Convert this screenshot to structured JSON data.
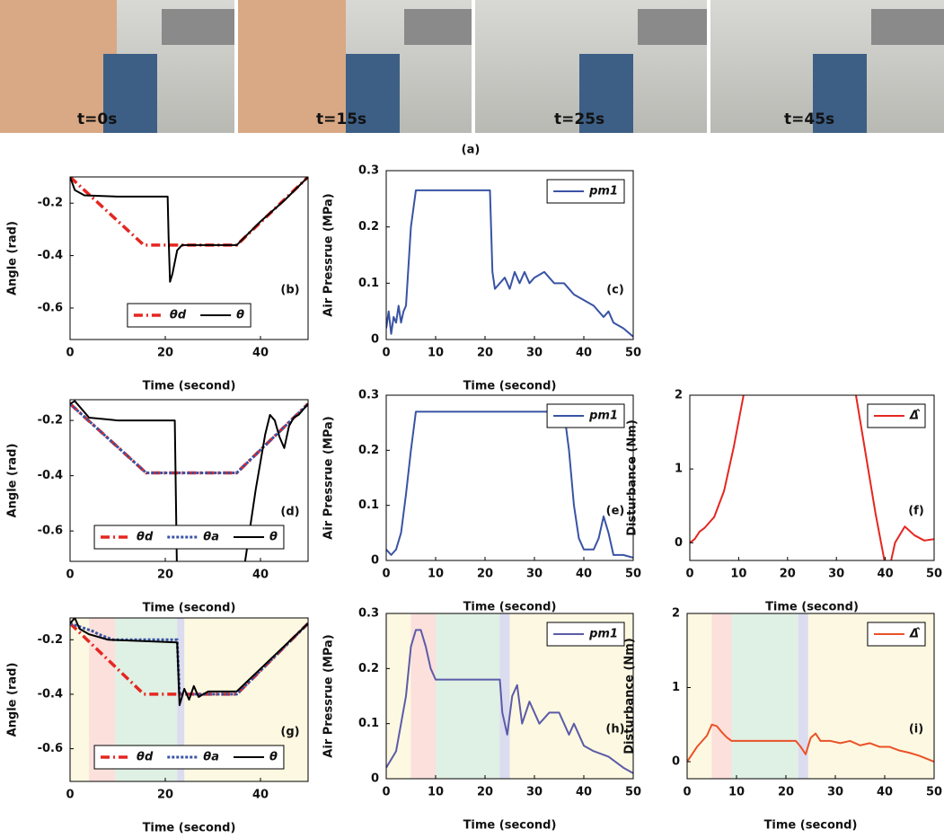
{
  "figure": {
    "photos": [
      {
        "label": "t=0s"
      },
      {
        "label": "t=15s"
      },
      {
        "label": "t=25s"
      },
      {
        "label": "t=45s"
      }
    ],
    "caption": "(a)"
  },
  "chart_data": [
    {
      "type": "line",
      "label": "(b)",
      "xlabel": "Time (second)",
      "ylabel": "Angle (rad)",
      "xlim": [
        0,
        50
      ],
      "ylim": [
        -0.72,
        -0.1
      ],
      "xticks": [
        0,
        20,
        40
      ],
      "yticks": [
        -0.6,
        -0.4,
        -0.2
      ],
      "legend": "lower center",
      "series": [
        {
          "name": "θd",
          "color": "#e52620",
          "style": "dashdot",
          "x": [
            0,
            15.5,
            35,
            50
          ],
          "values": [
            -0.1,
            -0.36,
            -0.36,
            -0.1
          ]
        },
        {
          "name": "θ",
          "color": "#000000",
          "style": "solid",
          "x": [
            0,
            1,
            3,
            10,
            20.5,
            20.7,
            21,
            21.5,
            22.5,
            23.5,
            30,
            35,
            40,
            45,
            50
          ],
          "values": [
            -0.1,
            -0.15,
            -0.17,
            -0.175,
            -0.175,
            -0.33,
            -0.5,
            -0.47,
            -0.38,
            -0.36,
            -0.36,
            -0.36,
            -0.27,
            -0.19,
            -0.1
          ]
        }
      ]
    },
    {
      "type": "line",
      "label": "(c)",
      "xlabel": "Time (second)",
      "ylabel": "Air Pressrue (MPa)",
      "xlim": [
        0,
        50
      ],
      "ylim": [
        0,
        0.3
      ],
      "xticks": [
        0,
        10,
        20,
        30,
        40,
        50
      ],
      "yticks": [
        0,
        0.1,
        0.2,
        0.3
      ],
      "legend": "upper right",
      "series": [
        {
          "name": "pm1",
          "color": "#3953a4",
          "style": "solid",
          "x": [
            0,
            0.5,
            1,
            1.5,
            2,
            2.5,
            3,
            3.5,
            4,
            5,
            6,
            10,
            15,
            20,
            21,
            21.5,
            22,
            23,
            24,
            25,
            26,
            27,
            28,
            29,
            30,
            32,
            34,
            36,
            38,
            40,
            42,
            44,
            45,
            46,
            48,
            50
          ],
          "values": [
            0.02,
            0.05,
            0.01,
            0.04,
            0.03,
            0.06,
            0.03,
            0.05,
            0.06,
            0.2,
            0.265,
            0.265,
            0.265,
            0.265,
            0.265,
            0.12,
            0.09,
            0.1,
            0.11,
            0.09,
            0.12,
            0.1,
            0.12,
            0.1,
            0.11,
            0.12,
            0.1,
            0.1,
            0.08,
            0.07,
            0.06,
            0.04,
            0.05,
            0.03,
            0.02,
            0.005
          ]
        }
      ]
    },
    {
      "type": "line",
      "label": "(d)",
      "xlabel": "Time (second)",
      "ylabel": "Angle (rad)",
      "xlim": [
        0,
        50
      ],
      "ylim": [
        -0.71,
        -0.125
      ],
      "xticks": [
        0,
        20,
        40
      ],
      "yticks": [
        -0.6,
        -0.4,
        -0.2
      ],
      "legend": "lower center",
      "series": [
        {
          "name": "θd",
          "color": "#e52620",
          "style": "dashdot",
          "x": [
            0,
            16,
            35,
            50
          ],
          "values": [
            -0.14,
            -0.39,
            -0.39,
            -0.14
          ]
        },
        {
          "name": "θa",
          "color": "#3953a4",
          "style": "dotted",
          "x": [
            0,
            16,
            35,
            50
          ],
          "values": [
            -0.14,
            -0.39,
            -0.39,
            -0.14
          ]
        },
        {
          "name": "θ",
          "color": "#000000",
          "style": "solid",
          "x": [
            0,
            1,
            2,
            4,
            10,
            22,
            22.5,
            36,
            39,
            41,
            42,
            43,
            44,
            45,
            46,
            47,
            48,
            50
          ],
          "values": [
            -0.14,
            -0.13,
            -0.15,
            -0.19,
            -0.2,
            -0.2,
            -0.8,
            -0.8,
            -0.45,
            -0.25,
            -0.18,
            -0.2,
            -0.26,
            -0.3,
            -0.22,
            -0.19,
            -0.18,
            -0.14
          ]
        }
      ]
    },
    {
      "type": "line",
      "label": "(e)",
      "xlabel": "Time (second)",
      "ylabel": "Air Pressrue (MPa)",
      "xlim": [
        0,
        50
      ],
      "ylim": [
        0,
        0.3
      ],
      "xticks": [
        0,
        10,
        20,
        30,
        40,
        50
      ],
      "yticks": [
        0,
        0.1,
        0.2,
        0.3
      ],
      "legend": "upper right",
      "series": [
        {
          "name": "pm1",
          "color": "#3953a4",
          "style": "solid",
          "x": [
            0,
            1,
            2,
            3,
            4,
            5,
            6,
            10,
            20,
            30,
            36,
            37,
            38,
            39,
            40,
            42,
            43,
            44,
            45,
            46,
            48,
            50
          ],
          "values": [
            0.02,
            0.01,
            0.02,
            0.05,
            0.12,
            0.2,
            0.27,
            0.27,
            0.27,
            0.27,
            0.27,
            0.2,
            0.1,
            0.04,
            0.02,
            0.02,
            0.04,
            0.08,
            0.05,
            0.01,
            0.01,
            0.005
          ]
        }
      ]
    },
    {
      "type": "line",
      "label": "(f)",
      "xlabel": "Time (second)",
      "ylabel": "Disturbance (Nm)",
      "xlim": [
        0,
        50
      ],
      "ylim": [
        -0.24,
        2
      ],
      "xticks": [
        0,
        10,
        20,
        30,
        40,
        50
      ],
      "yticks": [
        0,
        1,
        2
      ],
      "legend": "upper right",
      "series": [
        {
          "name": "Δ̂",
          "color": "#e52620",
          "style": "solid",
          "x": [
            0,
            1,
            2,
            3,
            5,
            7,
            9,
            11,
            12,
            33,
            34,
            36,
            38,
            40,
            41,
            42,
            44,
            46,
            48,
            50
          ],
          "values": [
            0,
            0.05,
            0.15,
            0.2,
            0.35,
            0.7,
            1.3,
            2.0,
            2.5,
            2.5,
            2.0,
            1.2,
            0.4,
            -0.3,
            -0.3,
            0,
            0.22,
            0.1,
            0.03,
            0.05
          ]
        }
      ]
    },
    {
      "type": "line",
      "label": "(g)",
      "xlabel": "Time (second)",
      "ylabel": "Angle (rad)",
      "xlim": [
        0,
        50
      ],
      "ylim": [
        -0.72,
        -0.12
      ],
      "xticks": [
        0,
        20,
        40
      ],
      "yticks": [
        -0.6,
        -0.4,
        -0.2
      ],
      "legend": "lower center",
      "regions": [
        {
          "x": [
            0,
            50
          ],
          "color": "#fdf8e1"
        },
        {
          "x": [
            4,
            9.5
          ],
          "color": "#fbe0dc"
        },
        {
          "x": [
            9.5,
            22.5
          ],
          "color": "#dff0e4"
        },
        {
          "x": [
            22.5,
            24
          ],
          "color": "#dcdcf0"
        }
      ],
      "series": [
        {
          "name": "θd",
          "color": "#e52620",
          "style": "dashdot",
          "x": [
            0,
            15.5,
            35,
            50
          ],
          "values": [
            -0.14,
            -0.4,
            -0.4,
            -0.14
          ]
        },
        {
          "name": "θa",
          "color": "#3953a4",
          "style": "dotted",
          "x": [
            0,
            5,
            6,
            9,
            22.5,
            23,
            35,
            50
          ],
          "values": [
            -0.14,
            -0.17,
            -0.18,
            -0.2,
            -0.2,
            -0.4,
            -0.4,
            -0.14
          ]
        },
        {
          "name": "θ",
          "color": "#000000",
          "style": "solid",
          "x": [
            0,
            1,
            2,
            4,
            8,
            22.5,
            23,
            24,
            25,
            26,
            27,
            29,
            35,
            50
          ],
          "values": [
            -0.14,
            -0.12,
            -0.16,
            -0.18,
            -0.2,
            -0.21,
            -0.44,
            -0.38,
            -0.42,
            -0.37,
            -0.41,
            -0.39,
            -0.39,
            -0.14
          ]
        }
      ]
    },
    {
      "type": "line",
      "label": "(h)",
      "xlabel": "Time (second)",
      "ylabel": "Air Pressrue (MPa)",
      "xlim": [
        0,
        50
      ],
      "ylim": [
        0,
        0.3
      ],
      "xticks": [
        0,
        10,
        20,
        30,
        40,
        50
      ],
      "yticks": [
        0,
        0.1,
        0.2,
        0.3
      ],
      "legend": "upper right",
      "regions": [
        {
          "x": [
            0,
            50
          ],
          "color": "#fdf8e1"
        },
        {
          "x": [
            5,
            10
          ],
          "color": "#fbe0dc"
        },
        {
          "x": [
            10,
            23
          ],
          "color": "#dff0e4"
        },
        {
          "x": [
            23,
            25
          ],
          "color": "#dcdcf0"
        }
      ],
      "series": [
        {
          "name": "pm1",
          "color": "#5b5ba8",
          "style": "solid",
          "x": [
            0,
            2,
            4,
            5,
            6,
            7,
            8,
            9,
            10,
            15,
            20,
            23,
            23.5,
            24.5,
            25.5,
            26.5,
            27.5,
            29,
            31,
            33,
            35,
            37,
            38,
            40,
            42,
            45,
            48,
            50
          ],
          "values": [
            0.02,
            0.05,
            0.15,
            0.24,
            0.27,
            0.27,
            0.24,
            0.2,
            0.18,
            0.18,
            0.18,
            0.18,
            0.12,
            0.08,
            0.15,
            0.17,
            0.1,
            0.14,
            0.1,
            0.12,
            0.12,
            0.08,
            0.1,
            0.06,
            0.05,
            0.04,
            0.02,
            0.01
          ]
        }
      ]
    },
    {
      "type": "line",
      "label": "(i)",
      "xlabel": "Time (second)",
      "ylabel": "Disturbance (Nm)",
      "xlim": [
        0,
        50
      ],
      "ylim": [
        -0.23,
        2
      ],
      "xticks": [
        0,
        10,
        20,
        30,
        40,
        50
      ],
      "yticks": [
        0,
        1,
        2
      ],
      "legend": "upper right",
      "regions": [
        {
          "x": [
            0,
            50
          ],
          "color": "#fdf8e1"
        },
        {
          "x": [
            5,
            9
          ],
          "color": "#fbe0dc"
        },
        {
          "x": [
            9,
            22.5
          ],
          "color": "#dff0e4"
        },
        {
          "x": [
            22.5,
            24.5
          ],
          "color": "#dcdcf0"
        }
      ],
      "series": [
        {
          "name": "Δ̂",
          "color": "#ea5228",
          "style": "solid",
          "x": [
            0,
            2,
            4,
            5,
            6,
            7,
            8,
            9,
            15,
            22,
            23,
            24,
            25,
            26,
            27,
            29,
            31,
            33,
            35,
            37,
            39,
            41,
            43,
            45,
            47,
            50
          ],
          "values": [
            0,
            0.2,
            0.35,
            0.5,
            0.48,
            0.4,
            0.33,
            0.28,
            0.28,
            0.28,
            0.2,
            0.1,
            0.32,
            0.38,
            0.28,
            0.28,
            0.25,
            0.28,
            0.22,
            0.25,
            0.2,
            0.2,
            0.15,
            0.12,
            0.08,
            0
          ]
        }
      ]
    }
  ]
}
